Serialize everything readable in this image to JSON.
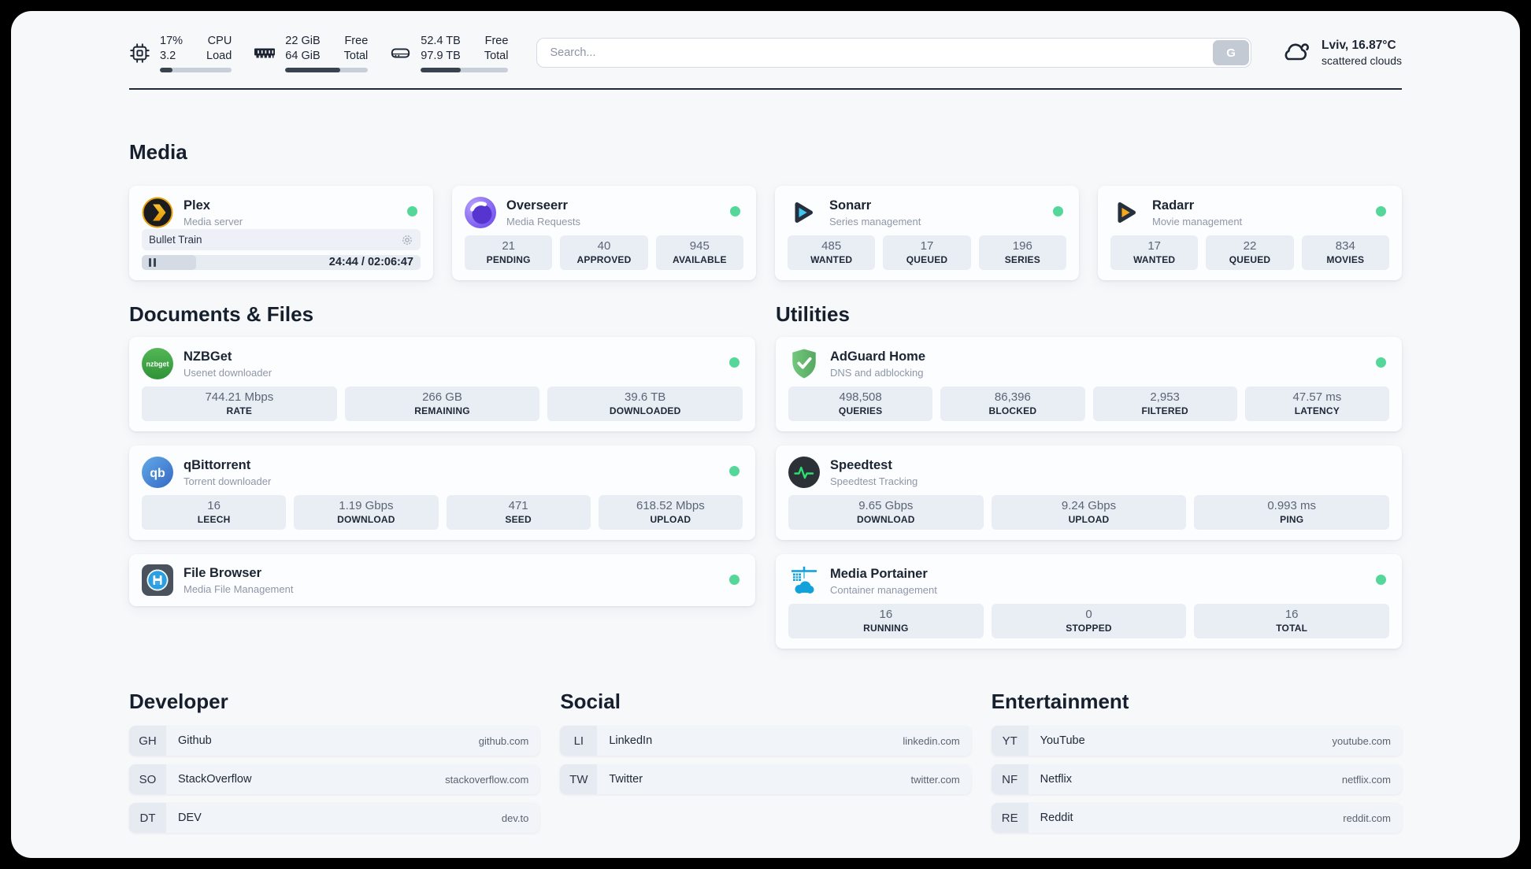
{
  "header": {
    "cpu": {
      "value_top": "17%",
      "value_bottom": "3.2",
      "label_top": "CPU",
      "label_bottom": "Load",
      "bar_percent": 17
    },
    "ram": {
      "value_top": "22 GiB",
      "value_bottom": "64 GiB",
      "label_top": "Free",
      "label_bottom": "Total",
      "bar_percent": 66
    },
    "disk": {
      "value_top": "52.4 TB",
      "value_bottom": "97.9 TB",
      "label_top": "Free",
      "label_bottom": "Total",
      "bar_percent": 46
    },
    "search": {
      "placeholder": "Search...",
      "button_label": "G"
    },
    "weather": {
      "location": "Lviv, 16.87°C",
      "condition": "scattered clouds"
    }
  },
  "sections": {
    "media": {
      "title": "Media",
      "plex": {
        "name": "Plex",
        "description": "Media server",
        "now_playing": "Bullet Train",
        "time": "24:44 / 02:06:47",
        "progress_percent": 19.5
      },
      "overseerr": {
        "name": "Overseerr",
        "description": "Media Requests",
        "stats": [
          {
            "value": "21",
            "label": "PENDING"
          },
          {
            "value": "40",
            "label": "APPROVED"
          },
          {
            "value": "945",
            "label": "AVAILABLE"
          }
        ]
      },
      "sonarr": {
        "name": "Sonarr",
        "description": "Series management",
        "stats": [
          {
            "value": "485",
            "label": "WANTED"
          },
          {
            "value": "17",
            "label": "QUEUED"
          },
          {
            "value": "196",
            "label": "SERIES"
          }
        ]
      },
      "radarr": {
        "name": "Radarr",
        "description": "Movie management",
        "stats": [
          {
            "value": "17",
            "label": "WANTED"
          },
          {
            "value": "22",
            "label": "QUEUED"
          },
          {
            "value": "834",
            "label": "MOVIES"
          }
        ]
      }
    },
    "documents": {
      "title": "Documents & Files",
      "nzbget": {
        "name": "NZBGet",
        "description": "Usenet downloader",
        "stats": [
          {
            "value": "744.21 Mbps",
            "label": "RATE"
          },
          {
            "value": "266 GB",
            "label": "REMAINING"
          },
          {
            "value": "39.6 TB",
            "label": "DOWNLOADED"
          }
        ]
      },
      "qbittorrent": {
        "name": "qBittorrent",
        "description": "Torrent downloader",
        "stats": [
          {
            "value": "16",
            "label": "LEECH"
          },
          {
            "value": "1.19 Gbps",
            "label": "DOWNLOAD"
          },
          {
            "value": "471",
            "label": "SEED"
          },
          {
            "value": "618.52 Mbps",
            "label": "UPLOAD"
          }
        ]
      },
      "filebrowser": {
        "name": "File Browser",
        "description": "Media File Management"
      }
    },
    "utilities": {
      "title": "Utilities",
      "adguard": {
        "name": "AdGuard Home",
        "description": "DNS and adblocking",
        "stats": [
          {
            "value": "498,508",
            "label": "QUERIES"
          },
          {
            "value": "86,396",
            "label": "BLOCKED"
          },
          {
            "value": "2,953",
            "label": "FILTERED"
          },
          {
            "value": "47.57 ms",
            "label": "LATENCY"
          }
        ]
      },
      "speedtest": {
        "name": "Speedtest",
        "description": "Speedtest Tracking",
        "stats": [
          {
            "value": "9.65 Gbps",
            "label": "DOWNLOAD"
          },
          {
            "value": "9.24 Gbps",
            "label": "UPLOAD"
          },
          {
            "value": "0.993 ms",
            "label": "PING"
          }
        ]
      },
      "portainer": {
        "name": "Media Portainer",
        "description": "Container management",
        "stats": [
          {
            "value": "16",
            "label": "RUNNING"
          },
          {
            "value": "0",
            "label": "STOPPED"
          },
          {
            "value": "16",
            "label": "TOTAL"
          }
        ]
      }
    },
    "bookmarks": [
      {
        "title": "Developer",
        "items": [
          {
            "abbr": "GH",
            "name": "Github",
            "url": "github.com"
          },
          {
            "abbr": "SO",
            "name": "StackOverflow",
            "url": "stackoverflow.com"
          },
          {
            "abbr": "DT",
            "name": "DEV",
            "url": "dev.to"
          }
        ]
      },
      {
        "title": "Social",
        "items": [
          {
            "abbr": "LI",
            "name": "LinkedIn",
            "url": "linkedin.com"
          },
          {
            "abbr": "TW",
            "name": "Twitter",
            "url": "twitter.com"
          }
        ]
      },
      {
        "title": "Entertainment",
        "items": [
          {
            "abbr": "YT",
            "name": "YouTube",
            "url": "youtube.com"
          },
          {
            "abbr": "NF",
            "name": "Netflix",
            "url": "netflix.com"
          },
          {
            "abbr": "RE",
            "name": "Reddit",
            "url": "reddit.com"
          }
        ]
      }
    ]
  },
  "colors": {
    "status_online": "#54d798",
    "plex_amber": "#e8a00c",
    "sonarr_cyan": "#3ec6ef",
    "radarr_amber": "#f5a81c",
    "nzbget_green": "#3aa844",
    "qbittorrent_blue": "#3f7fd6",
    "adguard_green": "#67bd72",
    "speedtest_green": "#2be06e",
    "portainer_blue": "#11a2dc"
  },
  "icons": [
    "chip-icon",
    "ram-icon",
    "disk-icon",
    "cloud-icon",
    "plex-icon",
    "overseerr-icon",
    "sonarr-icon",
    "radarr-icon",
    "nzbget-icon",
    "qbittorrent-icon",
    "filebrowser-icon",
    "adguard-icon",
    "speedtest-icon",
    "portainer-icon",
    "gear-icon",
    "pause-icon",
    "status-dot"
  ]
}
